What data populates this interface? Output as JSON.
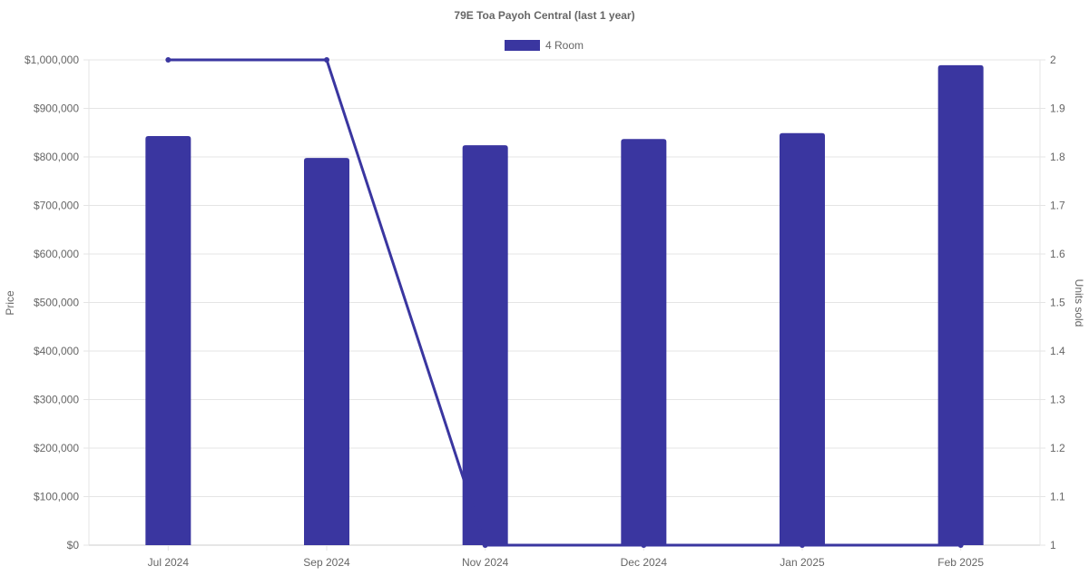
{
  "chart_data": {
    "type": "bar",
    "title": "79E Toa Payoh Central (last 1 year)",
    "categories": [
      "Jul 2024",
      "Sep 2024",
      "Nov 2024",
      "Dec 2024",
      "Jan 2025",
      "Feb 2025"
    ],
    "series": [
      {
        "name": "4 Room",
        "type": "bar",
        "axis": "left",
        "values": [
          843000,
          798000,
          824000,
          837000,
          849000,
          989000
        ],
        "color": "#3a36a0"
      },
      {
        "type": "line",
        "axis": "right",
        "values": [
          2,
          2,
          1,
          1,
          1,
          1
        ],
        "color": "#3a36a0"
      }
    ],
    "ylabel": "Price",
    "y2label": "Units sold",
    "ylim": [
      0,
      1000000
    ],
    "y2lim": [
      1,
      2
    ],
    "yticks": [
      "$0",
      "$100,000",
      "$200,000",
      "$300,000",
      "$400,000",
      "$500,000",
      "$600,000",
      "$700,000",
      "$800,000",
      "$900,000",
      "$1,000,000"
    ],
    "y2ticks": [
      "1",
      "1.1",
      "1.2",
      "1.3",
      "1.4",
      "1.5",
      "1.6",
      "1.7",
      "1.8",
      "1.9",
      "2"
    ],
    "legend_position": "top",
    "grid": true
  }
}
